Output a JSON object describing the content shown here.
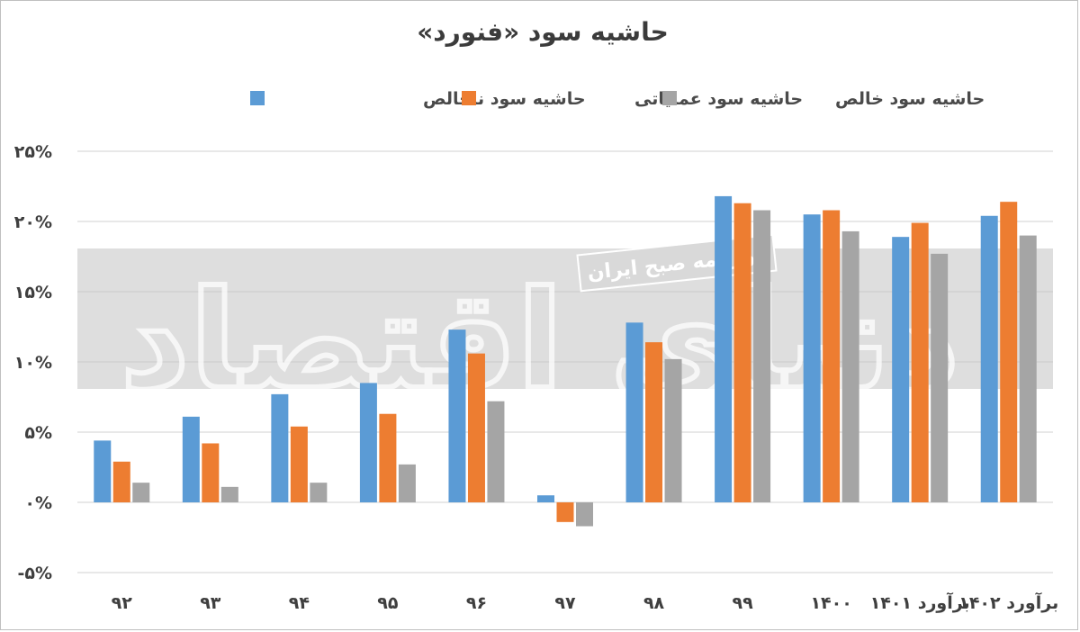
{
  "chart_data": {
    "type": "bar",
    "title": "حاشیه سود «فنورد»",
    "xlabel": "",
    "ylabel": "",
    "ylim": [
      -5,
      25
    ],
    "yticks": [
      25,
      20,
      15,
      10,
      5,
      0,
      -5
    ],
    "ytick_labels": [
      "۲۵%",
      "۲۰%",
      "۱۵%",
      "۱۰%",
      "۵%",
      "۰%",
      "-۵%"
    ],
    "grid": true,
    "legend_position": "top",
    "categories": [
      "۹۲",
      "۹۳",
      "۹۴",
      "۹۵",
      "۹۶",
      "۹۷",
      "۹۸",
      "۹۹",
      "۱۴۰۰",
      "برآورد ۱۴۰۱",
      "برآورد ۱۴۰۲"
    ],
    "series": [
      {
        "name": "حاشیه سود ناخالص",
        "color": "#5b9bd5",
        "values": [
          4.4,
          6.1,
          7.7,
          8.5,
          12.3,
          0.5,
          12.8,
          21.8,
          20.5,
          18.9,
          20.4
        ]
      },
      {
        "name": "حاشیه سود عملیاتی",
        "color": "#ed7d31",
        "values": [
          2.9,
          4.2,
          5.4,
          6.3,
          10.6,
          -1.4,
          11.4,
          21.3,
          20.8,
          19.9,
          21.4
        ]
      },
      {
        "name": "حاشیه سود خالص",
        "color": "#a5a5a5",
        "values": [
          1.4,
          1.1,
          1.4,
          2.7,
          7.2,
          -1.7,
          10.2,
          20.8,
          19.3,
          17.7,
          19.0
        ]
      }
    ]
  },
  "watermark": {
    "brand": "دنیای اقتصاد",
    "subtitle": "روزنامه صبح ایران"
  }
}
